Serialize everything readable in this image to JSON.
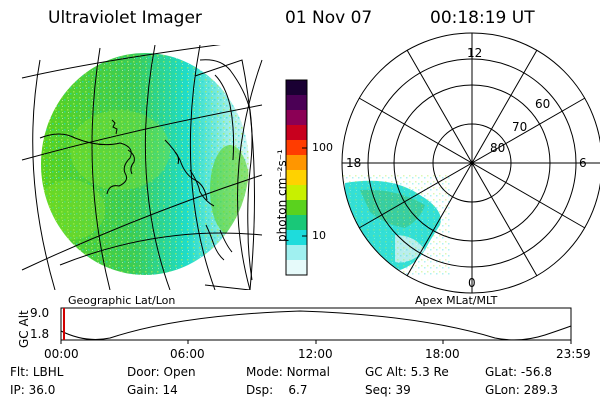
{
  "header": {
    "instrument": "Ultraviolet Imager",
    "date": "01 Nov 07",
    "time": "00:18:19 UT"
  },
  "left_panel": {
    "label": "Geographic Lat/Lon"
  },
  "right_panel": {
    "label": "Apex MLat/MLT",
    "mlt_labels": {
      "top": "12",
      "left": "18",
      "right": "6",
      "bottom": "0"
    },
    "lat_labels": [
      "60",
      "70",
      "80"
    ]
  },
  "colorbar": {
    "unit_label": "photon cm⁻²s⁻¹",
    "ticks": [
      "100",
      "10"
    ],
    "colors": [
      "#1a0033",
      "#4b0055",
      "#8b0055",
      "#c8001e",
      "#ff3c00",
      "#ff9600",
      "#ffd200",
      "#c8f000",
      "#5ad21e",
      "#19c878",
      "#1edcdc",
      "#a0f0f0",
      "#e6fafa"
    ]
  },
  "altitude_plot": {
    "ylabel": "GC Alt",
    "yticks": [
      "9.0",
      "1.8"
    ],
    "xticks": [
      "00:00",
      "06:00",
      "12:00",
      "18:00",
      "23:59"
    ],
    "marker_color": "#d20000"
  },
  "info": {
    "row1": [
      {
        "key": "Flt:",
        "val": "LBHL"
      },
      {
        "key": "Door:",
        "val": "Open"
      },
      {
        "key": "Mode:",
        "val": "Normal"
      },
      {
        "key": "GC Alt:",
        "val": "5.3 Re"
      },
      {
        "key": "GLat:",
        "val": "-56.8"
      }
    ],
    "row2": [
      {
        "key": "IP:",
        "val": "36.0"
      },
      {
        "key": "Gain:",
        "val": "14"
      },
      {
        "key": "Dsp:",
        "val": "6.7"
      },
      {
        "key": "Seq:",
        "val": "39"
      },
      {
        "key": "GLon:",
        "val": "289.3"
      }
    ]
  }
}
